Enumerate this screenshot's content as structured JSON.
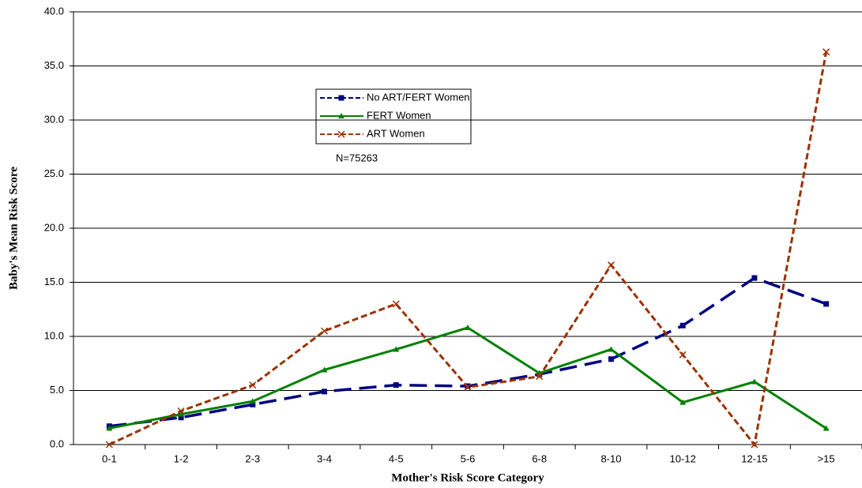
{
  "chart_data": {
    "type": "line",
    "xlabel": "Mother's Risk Score Category",
    "ylabel": "Baby's Mean Risk Score",
    "annotation": "N=75263",
    "categories": [
      "0-1",
      "1-2",
      "2-3",
      "3-4",
      "4-5",
      "5-6",
      "6-8",
      "8-10",
      "10-12",
      "12-15",
      ">15"
    ],
    "series": [
      {
        "name": "No ART/FERT  Women",
        "color": "#000080",
        "marker": "square",
        "linestyle": "long-dash",
        "values": [
          1.7,
          2.5,
          3.7,
          4.9,
          5.5,
          5.4,
          6.5,
          7.9,
          11.0,
          15.4,
          13.0
        ]
      },
      {
        "name": "FERT Women",
        "color": "#008000",
        "marker": "triangle",
        "linestyle": "solid",
        "values": [
          1.5,
          2.8,
          4.0,
          6.9,
          8.8,
          10.8,
          6.6,
          8.8,
          3.9,
          5.8,
          1.5
        ]
      },
      {
        "name": "ART Women",
        "color": "#993300",
        "marker": "x",
        "linestyle": "dash",
        "values": [
          0.0,
          3.1,
          5.5,
          10.5,
          13.0,
          5.3,
          6.3,
          16.6,
          8.3,
          0.0,
          36.3
        ]
      }
    ],
    "ylim": [
      0,
      40
    ],
    "yticks": [
      {
        "value": 0,
        "label": "0.0"
      },
      {
        "value": 5,
        "label": "5.0"
      },
      {
        "value": 10,
        "label": "10.0"
      },
      {
        "value": 15,
        "label": "15.0"
      },
      {
        "value": 20,
        "label": "20.0"
      },
      {
        "value": 25,
        "label": "25.0"
      },
      {
        "value": 30,
        "label": "30.0"
      },
      {
        "value": 35,
        "label": "35.0"
      },
      {
        "value": 40,
        "label": "40.0"
      }
    ],
    "grid": true
  }
}
